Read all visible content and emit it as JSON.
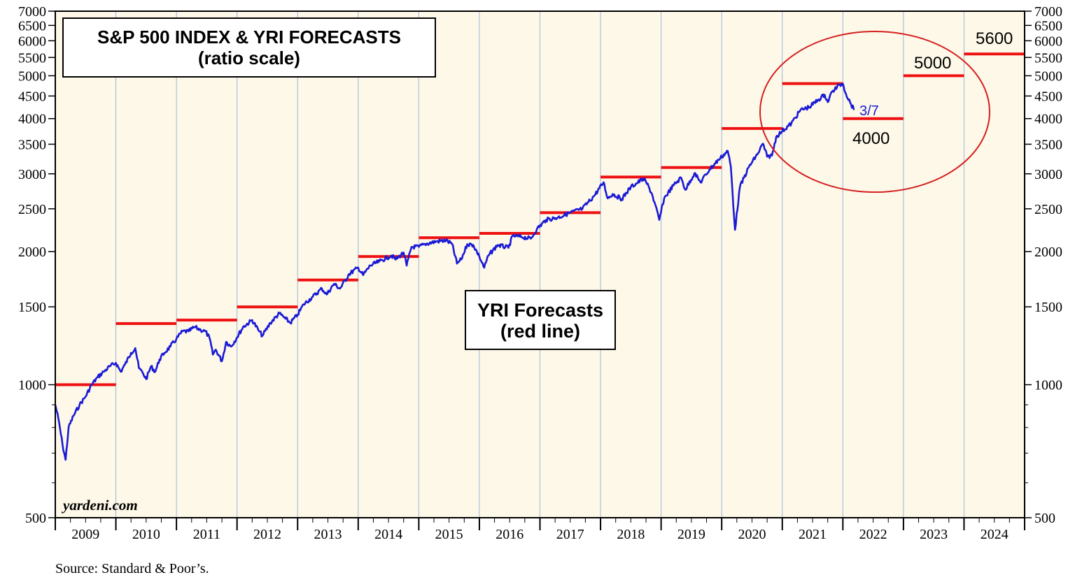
{
  "chart_data": {
    "type": "line",
    "title": "S&P 500 INDEX & YRI FORECASTS",
    "subtitle": "(ratio scale)",
    "y_scale": "log",
    "ylim": [
      500,
      7000
    ],
    "y_ticks": [
      500,
      1000,
      1500,
      2000,
      2500,
      3000,
      3500,
      4000,
      4500,
      5000,
      5500,
      6000,
      6500,
      7000
    ],
    "x_range": [
      2009,
      2025
    ],
    "years": [
      "2009",
      "2010",
      "2011",
      "2012",
      "2013",
      "2014",
      "2015",
      "2016",
      "2017",
      "2018",
      "2019",
      "2020",
      "2021",
      "2022",
      "2023",
      "2024"
    ],
    "series": [
      {
        "name": "S&P 500 Index",
        "color": "#1a1ad6",
        "points": [
          [
            2009.0,
            900
          ],
          [
            2009.05,
            840
          ],
          [
            2009.12,
            730
          ],
          [
            2009.17,
            676
          ],
          [
            2009.22,
            800
          ],
          [
            2009.3,
            850
          ],
          [
            2009.4,
            900
          ],
          [
            2009.5,
            940
          ],
          [
            2009.6,
            1000
          ],
          [
            2009.7,
            1040
          ],
          [
            2009.8,
            1070
          ],
          [
            2009.9,
            1100
          ],
          [
            2010.0,
            1120
          ],
          [
            2010.08,
            1070
          ],
          [
            2010.15,
            1110
          ],
          [
            2010.25,
            1180
          ],
          [
            2010.32,
            1210
          ],
          [
            2010.38,
            1090
          ],
          [
            2010.45,
            1060
          ],
          [
            2010.5,
            1030
          ],
          [
            2010.58,
            1100
          ],
          [
            2010.65,
            1070
          ],
          [
            2010.72,
            1140
          ],
          [
            2010.8,
            1180
          ],
          [
            2010.9,
            1220
          ],
          [
            2011.0,
            1270
          ],
          [
            2011.1,
            1320
          ],
          [
            2011.2,
            1320
          ],
          [
            2011.3,
            1350
          ],
          [
            2011.4,
            1330
          ],
          [
            2011.48,
            1320
          ],
          [
            2011.55,
            1270
          ],
          [
            2011.6,
            1170
          ],
          [
            2011.65,
            1200
          ],
          [
            2011.75,
            1130
          ],
          [
            2011.82,
            1250
          ],
          [
            2011.9,
            1220
          ],
          [
            2012.0,
            1280
          ],
          [
            2012.1,
            1350
          ],
          [
            2012.25,
            1400
          ],
          [
            2012.35,
            1330
          ],
          [
            2012.42,
            1290
          ],
          [
            2012.55,
            1380
          ],
          [
            2012.7,
            1450
          ],
          [
            2012.8,
            1410
          ],
          [
            2012.88,
            1380
          ],
          [
            2013.0,
            1440
          ],
          [
            2013.1,
            1520
          ],
          [
            2013.25,
            1580
          ],
          [
            2013.4,
            1650
          ],
          [
            2013.48,
            1600
          ],
          [
            2013.6,
            1690
          ],
          [
            2013.7,
            1650
          ],
          [
            2013.85,
            1780
          ],
          [
            2014.0,
            1840
          ],
          [
            2014.08,
            1770
          ],
          [
            2014.2,
            1860
          ],
          [
            2014.35,
            1900
          ],
          [
            2014.55,
            1960
          ],
          [
            2014.62,
            1920
          ],
          [
            2014.75,
            1990
          ],
          [
            2014.8,
            1860
          ],
          [
            2014.88,
            2050
          ],
          [
            2015.0,
            2050
          ],
          [
            2015.1,
            2080
          ],
          [
            2015.3,
            2110
          ],
          [
            2015.45,
            2120
          ],
          [
            2015.55,
            2080
          ],
          [
            2015.63,
            1880
          ],
          [
            2015.7,
            1920
          ],
          [
            2015.8,
            2080
          ],
          [
            2015.9,
            2070
          ],
          [
            2016.0,
            1950
          ],
          [
            2016.08,
            1840
          ],
          [
            2016.15,
            1960
          ],
          [
            2016.3,
            2070
          ],
          [
            2016.48,
            2040
          ],
          [
            2016.55,
            2170
          ],
          [
            2016.7,
            2160
          ],
          [
            2016.85,
            2140
          ],
          [
            2016.95,
            2250
          ],
          [
            2017.1,
            2360
          ],
          [
            2017.3,
            2390
          ],
          [
            2017.5,
            2450
          ],
          [
            2017.7,
            2500
          ],
          [
            2017.9,
            2680
          ],
          [
            2018.05,
            2870
          ],
          [
            2018.12,
            2640
          ],
          [
            2018.2,
            2700
          ],
          [
            2018.35,
            2630
          ],
          [
            2018.5,
            2800
          ],
          [
            2018.7,
            2920
          ],
          [
            2018.75,
            2880
          ],
          [
            2018.85,
            2700
          ],
          [
            2018.97,
            2360
          ],
          [
            2019.05,
            2640
          ],
          [
            2019.2,
            2820
          ],
          [
            2019.33,
            2940
          ],
          [
            2019.4,
            2760
          ],
          [
            2019.55,
            3010
          ],
          [
            2019.65,
            2870
          ],
          [
            2019.8,
            3070
          ],
          [
            2019.95,
            3230
          ],
          [
            2020.1,
            3380
          ],
          [
            2020.15,
            3120
          ],
          [
            2020.22,
            2240
          ],
          [
            2020.3,
            2800
          ],
          [
            2020.45,
            3110
          ],
          [
            2020.6,
            3340
          ],
          [
            2020.68,
            3510
          ],
          [
            2020.75,
            3280
          ],
          [
            2020.83,
            3300
          ],
          [
            2020.9,
            3640
          ],
          [
            2021.0,
            3750
          ],
          [
            2021.15,
            3900
          ],
          [
            2021.3,
            4180
          ],
          [
            2021.45,
            4250
          ],
          [
            2021.6,
            4420
          ],
          [
            2021.7,
            4530
          ],
          [
            2021.75,
            4360
          ],
          [
            2021.82,
            4600
          ],
          [
            2021.95,
            4770
          ],
          [
            2022.0,
            4800
          ],
          [
            2022.05,
            4560
          ],
          [
            2022.12,
            4350
          ],
          [
            2022.18,
            4200
          ]
        ]
      },
      {
        "name": "YRI Forecasts (red line)",
        "color": "#ee1111",
        "segments": [
          [
            2009,
            2010,
            1000
          ],
          [
            2010,
            2011,
            1375
          ],
          [
            2011,
            2012,
            1400
          ],
          [
            2012,
            2013,
            1500
          ],
          [
            2013,
            2014,
            1725
          ],
          [
            2014,
            2015,
            1950
          ],
          [
            2015,
            2016,
            2150
          ],
          [
            2016,
            2017,
            2200
          ],
          [
            2017,
            2018,
            2450
          ],
          [
            2018,
            2019,
            2950
          ],
          [
            2019,
            2020,
            3100
          ],
          [
            2020,
            2021,
            3800
          ],
          [
            2021,
            2022,
            4800
          ],
          [
            2022,
            2023,
            4000
          ],
          [
            2023,
            2024,
            5000
          ],
          [
            2024,
            2025,
            5600
          ]
        ]
      }
    ],
    "annotations": {
      "last_date": "3/7",
      "forecast_2022": "4000",
      "forecast_2023": "5000",
      "forecast_2024": "5600",
      "forecast_box_line1": "YRI Forecasts",
      "forecast_box_line2": "(red line)"
    }
  },
  "brand": "yardeni.com",
  "source": "Source: Standard & Poor’s.",
  "colors": {
    "plot_bg": "#fdf8e8",
    "grid": "#9fb3d8",
    "index_line": "#1a1ad6",
    "forecast_line": "#ee1111",
    "circle": "#d42020"
  }
}
